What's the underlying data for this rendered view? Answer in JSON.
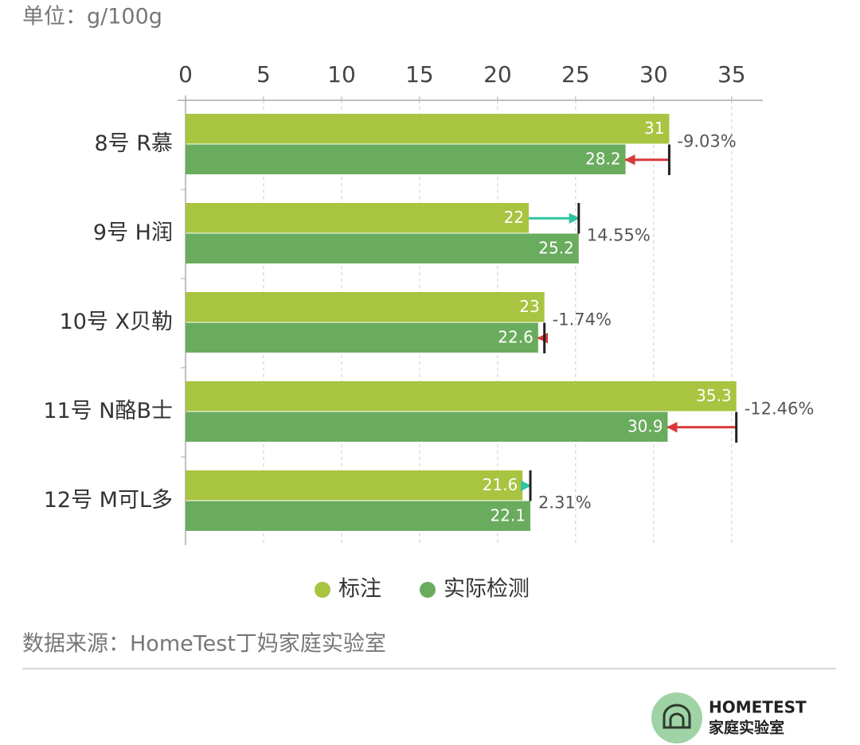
{
  "chart_data": {
    "type": "bar",
    "orientation": "horizontal",
    "subtitle": "单位：g/100g",
    "categories": [
      "8号 R慕",
      "9号 H润",
      "10号 X贝勒",
      "11号 N酪B士",
      "12号 M可L多"
    ],
    "series": [
      {
        "name": "标注",
        "color": "#a8c440",
        "values": [
          31,
          22,
          23,
          35.3,
          21.6
        ]
      },
      {
        "name": "实际检测",
        "color": "#6aac5e",
        "values": [
          28.2,
          25.2,
          22.6,
          30.9,
          22.1
        ]
      }
    ],
    "annotations": [
      "-9.03%",
      "14.55%",
      "-1.74%",
      "-12.46%",
      "2.31%"
    ],
    "xlim": [
      0,
      37
    ],
    "xticks": [
      0,
      5,
      10,
      15,
      20,
      25,
      30,
      35
    ],
    "grid": true,
    "source": "数据来源：HomeTest丁妈家庭实验室"
  },
  "logo": {
    "name": "HOMETEST",
    "subtitle": "家庭实验室"
  }
}
